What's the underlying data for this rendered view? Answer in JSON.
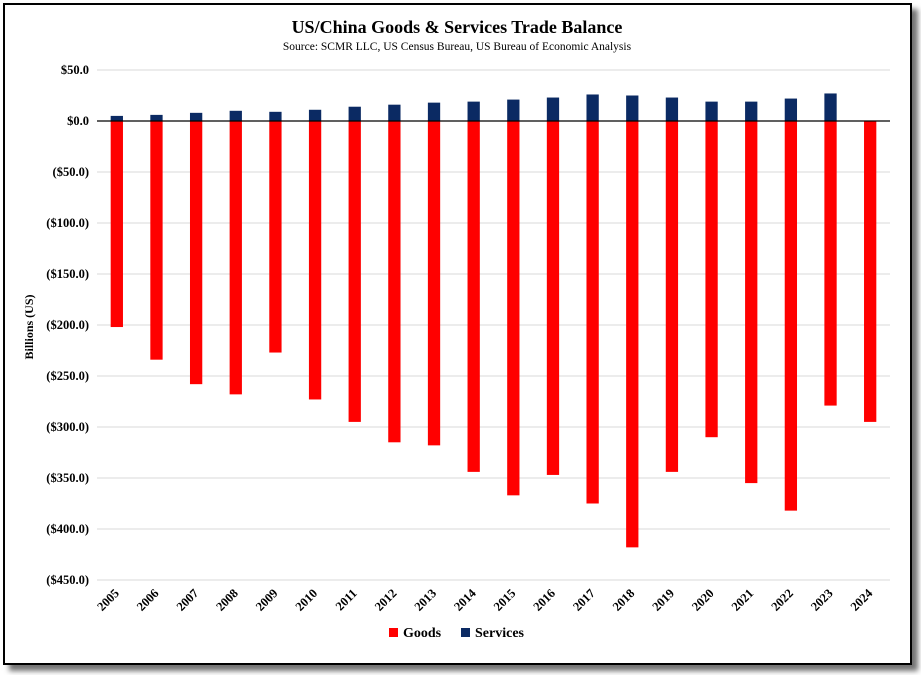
{
  "chart_data": {
    "type": "bar",
    "title": "US/China Goods & Services Trade Balance",
    "subtitle": "Source: SCMR LLC, US Census Bureau, US Bureau of Economic Analysis",
    "xlabel": "",
    "ylabel": "Billions (US)",
    "ylim": [
      -450,
      50
    ],
    "yticks": [
      50,
      0,
      -50,
      -100,
      -150,
      -200,
      -250,
      -300,
      -350,
      -400,
      -450
    ],
    "ytick_labels": [
      "$50.0",
      "$0.0",
      "($50.0)",
      "($100.0)",
      "($150.0)",
      "($200.0)",
      "($250.0)",
      "($300.0)",
      "($350.0)",
      "($400.0)",
      "($450.0)"
    ],
    "categories": [
      "2005",
      "2006",
      "2007",
      "2008",
      "2009",
      "2010",
      "2011",
      "2012",
      "2013",
      "2014",
      "2015",
      "2016",
      "2017",
      "2018",
      "2019",
      "2020",
      "2021",
      "2022",
      "2023",
      "2024"
    ],
    "series": [
      {
        "name": "Goods",
        "color": "#ff0000",
        "values": [
          -202,
          -234,
          -258,
          -268,
          -227,
          -273,
          -295,
          -315,
          -318,
          -344,
          -367,
          -347,
          -375,
          -418,
          -344,
          -310,
          -355,
          -382,
          -279,
          -295
        ]
      },
      {
        "name": "Services",
        "color": "#0b2a63",
        "values": [
          5,
          6,
          8,
          10,
          9,
          11,
          14,
          16,
          18,
          19,
          21,
          23,
          26,
          25,
          23,
          19,
          19,
          22,
          27,
          0
        ]
      }
    ],
    "grid": true,
    "legend_position": "bottom"
  }
}
